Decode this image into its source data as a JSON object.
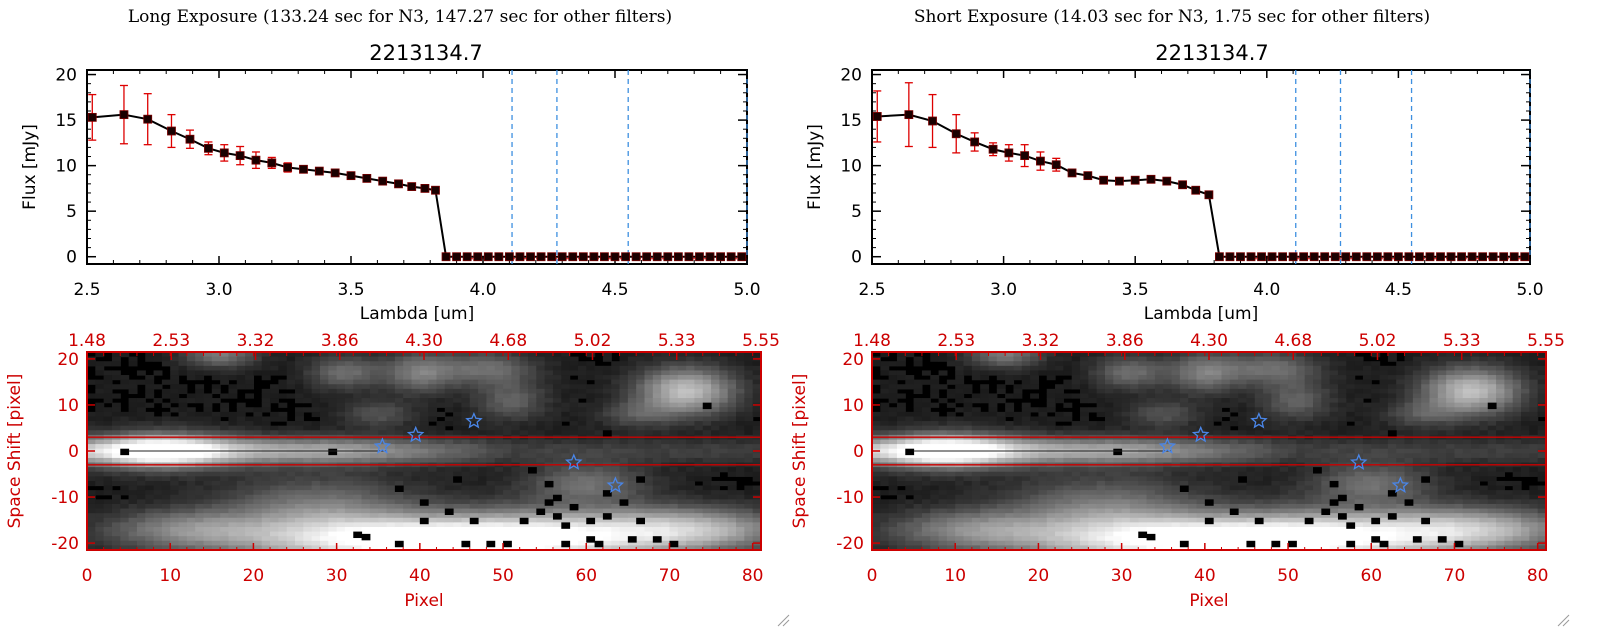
{
  "panels": [
    {
      "heading": "Long Exposure (133.24 sec for N3, 147.27 sec for other filters)",
      "spectrum": {
        "type": "line",
        "title": "2213134.7",
        "xlabel": "Lambda [um]",
        "ylabel": "Flux [mJy]",
        "xlim": [
          2.5,
          5.0
        ],
        "ylim": [
          -0.8,
          20.5
        ],
        "xticks": [
          "2.5",
          "3.0",
          "3.5",
          "4.0",
          "4.5",
          "5.0"
        ],
        "yticks": [
          "0",
          "5",
          "10",
          "15",
          "20"
        ],
        "series": [
          {
            "name": "flux",
            "x": [
              2.52,
              2.64,
              2.73,
              2.82,
              2.89,
              2.96,
              3.02,
              3.08,
              3.14,
              3.2,
              3.26,
              3.32,
              3.38,
              3.44,
              3.5,
              3.56,
              3.62,
              3.68,
              3.73,
              3.78,
              3.82,
              3.86,
              3.9,
              3.94,
              3.98,
              4.02,
              4.06,
              4.1,
              4.14,
              4.18,
              4.22,
              4.26,
              4.3,
              4.34,
              4.38,
              4.42,
              4.46,
              4.5,
              4.54,
              4.58,
              4.62,
              4.66,
              4.7,
              4.74,
              4.78,
              4.82,
              4.86,
              4.9,
              4.94,
              4.98
            ],
            "y": [
              15.3,
              15.6,
              15.1,
              13.8,
              12.9,
              11.9,
              11.4,
              11.1,
              10.6,
              10.3,
              9.8,
              9.6,
              9.4,
              9.2,
              8.9,
              8.6,
              8.3,
              8.0,
              7.7,
              7.5,
              7.3,
              0,
              0,
              0,
              0,
              0,
              0,
              0,
              0,
              0,
              0,
              0,
              0,
              0,
              0,
              0,
              0,
              0,
              0,
              0,
              0,
              0,
              0,
              0,
              0,
              0,
              0,
              0,
              0,
              0
            ],
            "yerr": [
              2.5,
              3.2,
              2.8,
              1.8,
              1.0,
              0.7,
              0.9,
              1.0,
              0.9,
              0.6,
              0.5,
              0,
              0,
              0,
              0,
              0,
              0,
              0,
              0,
              0,
              0,
              0,
              0,
              0,
              0,
              0,
              0,
              0,
              0,
              0,
              0,
              0,
              0,
              0,
              0,
              0,
              0,
              0,
              0,
              0,
              0,
              0,
              0,
              0,
              0,
              0,
              0,
              0,
              0,
              0
            ]
          }
        ],
        "vlines": [
          4.11,
          4.28,
          4.55,
          5.0
        ]
      },
      "image": {
        "type": "heatmap",
        "xlabel": "Pixel",
        "ylabel": "Space Shift [pixel]",
        "xlim": [
          0,
          81
        ],
        "ylim": [
          -21.5,
          21.5
        ],
        "xticks": [
          "0",
          "10",
          "20",
          "30",
          "40",
          "50",
          "60",
          "70",
          "80"
        ],
        "yticks": [
          "-20",
          "-10",
          "0",
          "10",
          "20"
        ],
        "top_axis_ticks": [
          "1.48",
          "2.53",
          "3.32",
          "3.86",
          "4.30",
          "4.68",
          "5.02",
          "5.33",
          "5.55"
        ],
        "aperture_y": [
          -3,
          3
        ],
        "stars": [
          [
            35.5,
            1.0
          ],
          [
            39.5,
            3.5
          ],
          [
            46.5,
            6.5
          ],
          [
            58.5,
            -2.5
          ],
          [
            63.5,
            -7.5
          ]
        ]
      }
    },
    {
      "heading": "Short Exposure (14.03 sec for N3, 1.75 sec for other filters)",
      "spectrum": {
        "type": "line",
        "title": "2213134.7",
        "xlabel": "Lambda [um]",
        "ylabel": "Flux [mJy]",
        "xlim": [
          2.5,
          5.0
        ],
        "ylim": [
          -0.8,
          20.5
        ],
        "xticks": [
          "2.5",
          "3.0",
          "3.5",
          "4.0",
          "4.5",
          "5.0"
        ],
        "yticks": [
          "0",
          "5",
          "10",
          "15",
          "20"
        ],
        "series": [
          {
            "name": "flux",
            "x": [
              2.52,
              2.64,
              2.73,
              2.82,
              2.89,
              2.96,
              3.02,
              3.08,
              3.14,
              3.2,
              3.26,
              3.32,
              3.38,
              3.44,
              3.5,
              3.56,
              3.62,
              3.68,
              3.73,
              3.78,
              3.82,
              3.86,
              3.9,
              3.94,
              3.98,
              4.02,
              4.06,
              4.1,
              4.14,
              4.18,
              4.22,
              4.26,
              4.3,
              4.34,
              4.38,
              4.42,
              4.46,
              4.5,
              4.54,
              4.58,
              4.62,
              4.66,
              4.7,
              4.74,
              4.78,
              4.82,
              4.86,
              4.9,
              4.94,
              4.98
            ],
            "y": [
              15.4,
              15.6,
              14.9,
              13.5,
              12.6,
              11.8,
              11.4,
              11.1,
              10.5,
              10.1,
              9.2,
              8.9,
              8.4,
              8.3,
              8.4,
              8.5,
              8.3,
              7.9,
              7.3,
              6.8,
              0,
              0,
              0,
              0,
              0,
              0,
              0,
              0,
              0,
              0,
              0,
              0,
              0,
              0,
              0,
              0,
              0,
              0,
              0,
              0,
              0,
              0,
              0,
              0,
              0,
              0,
              0,
              0,
              0,
              0
            ],
            "yerr": [
              2.8,
              3.5,
              2.9,
              2.1,
              1.0,
              0.7,
              0.9,
              1.2,
              1.0,
              0.7,
              0,
              0,
              0,
              0,
              0,
              0,
              0,
              0,
              0,
              0,
              0,
              0,
              0,
              0,
              0,
              0,
              0,
              0,
              0,
              0,
              0,
              0,
              0,
              0,
              0,
              0,
              0,
              0,
              0,
              0,
              0,
              0,
              0,
              0,
              0,
              0,
              0,
              0,
              0,
              0
            ]
          }
        ],
        "vlines": [
          4.11,
          4.28,
          4.55,
          5.0
        ]
      },
      "image": {
        "type": "heatmap",
        "xlabel": "Pixel",
        "ylabel": "Space Shift [pixel]",
        "xlim": [
          0,
          81
        ],
        "ylim": [
          -21.5,
          21.5
        ],
        "xticks": [
          "0",
          "10",
          "20",
          "30",
          "40",
          "50",
          "60",
          "70",
          "80"
        ],
        "yticks": [
          "-20",
          "-10",
          "0",
          "10",
          "20"
        ],
        "top_axis_ticks": [
          "1.48",
          "2.53",
          "3.32",
          "3.86",
          "4.30",
          "4.68",
          "5.02",
          "5.33",
          "5.55"
        ],
        "aperture_y": [
          -3,
          3
        ],
        "stars": [
          [
            35.5,
            1.0
          ],
          [
            39.5,
            3.5
          ],
          [
            46.5,
            6.5
          ],
          [
            58.5,
            -2.5
          ],
          [
            63.5,
            -7.5
          ]
        ]
      }
    }
  ],
  "colors": {
    "axis": "#000000",
    "image_axis": "#cc0000",
    "errorbar": "#dd0000",
    "marker": "#1a0000",
    "filter_lines": "#3d8fe0",
    "stars": "#4a86e8",
    "aperture": "#cc0000"
  }
}
